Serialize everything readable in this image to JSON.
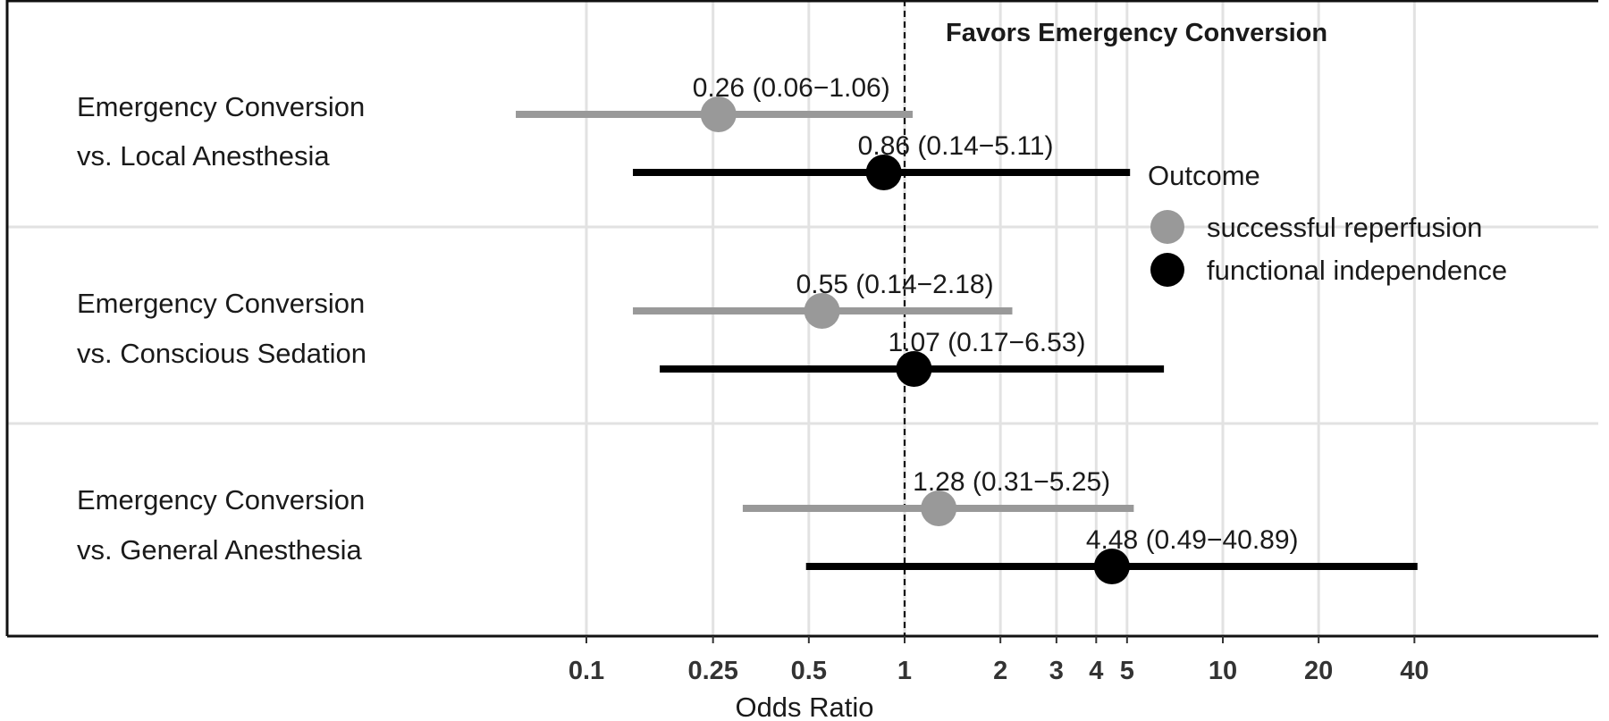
{
  "chart_data": {
    "type": "forest",
    "annotation": "Favors Emergency Conversion",
    "xlabel": "Odds Ratio",
    "x_scale": "log",
    "x_ticks": [
      0.1,
      0.25,
      0.5,
      1,
      2,
      3,
      4,
      5,
      10,
      20,
      40
    ],
    "x_tick_labels": [
      "0.1",
      "0.25",
      "0.5",
      "1",
      "2",
      "3",
      "4",
      "5",
      "10",
      "20",
      "40"
    ],
    "reference_line": 1,
    "grid": true,
    "legend": {
      "title": "Outcome",
      "placement": "right",
      "items": [
        {
          "label": "successful reperfusion",
          "color": "#999999"
        },
        {
          "label": "functional independence",
          "color": "#000000"
        }
      ]
    },
    "rows": [
      {
        "label_line1": "Emergency Conversion",
        "label_line2": "vs.  Local Anesthesia",
        "estimates": [
          {
            "outcome": "successful reperfusion",
            "or": 0.26,
            "lo": 0.06,
            "hi": 1.06,
            "text": "0.26 (0.06−1.06)"
          },
          {
            "outcome": "functional independence",
            "or": 0.86,
            "lo": 0.14,
            "hi": 5.11,
            "text": "0.86 (0.14−5.11)"
          }
        ]
      },
      {
        "label_line1": "Emergency Conversion",
        "label_line2": "vs. Conscious Sedation",
        "estimates": [
          {
            "outcome": "successful reperfusion",
            "or": 0.55,
            "lo": 0.14,
            "hi": 2.18,
            "text": "0.55 (0.14−2.18)"
          },
          {
            "outcome": "functional independence",
            "or": 1.07,
            "lo": 0.17,
            "hi": 6.53,
            "text": "1.07 (0.17−6.53)"
          }
        ]
      },
      {
        "label_line1": "Emergency Conversion",
        "label_line2": "vs.  General Anesthesia",
        "estimates": [
          {
            "outcome": "successful reperfusion",
            "or": 1.28,
            "lo": 0.31,
            "hi": 5.25,
            "text": "1.28 (0.31−5.25)"
          },
          {
            "outcome": "functional independence",
            "or": 4.48,
            "lo": 0.49,
            "hi": 40.89,
            "text": "4.48 (0.49−40.89)"
          }
        ]
      }
    ]
  }
}
